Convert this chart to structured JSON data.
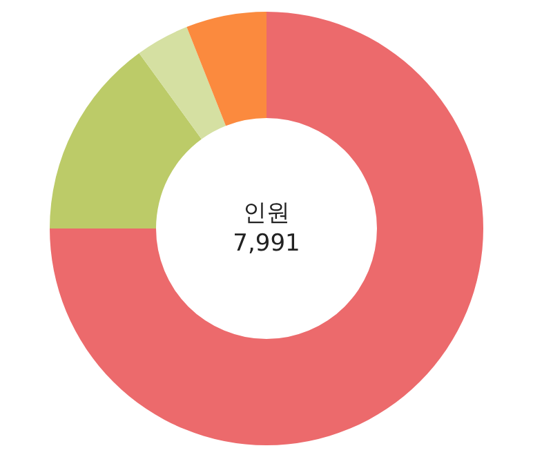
{
  "chart_data": {
    "type": "donut",
    "categories": [
      null,
      null,
      null,
      null
    ],
    "values": [
      75,
      15,
      4,
      6
    ],
    "colors": [
      "#ec6a6c",
      "#bccb68",
      "#d5e0a2",
      "#fb8a3e"
    ],
    "annotations": [
      "인원",
      "7,991"
    ]
  }
}
